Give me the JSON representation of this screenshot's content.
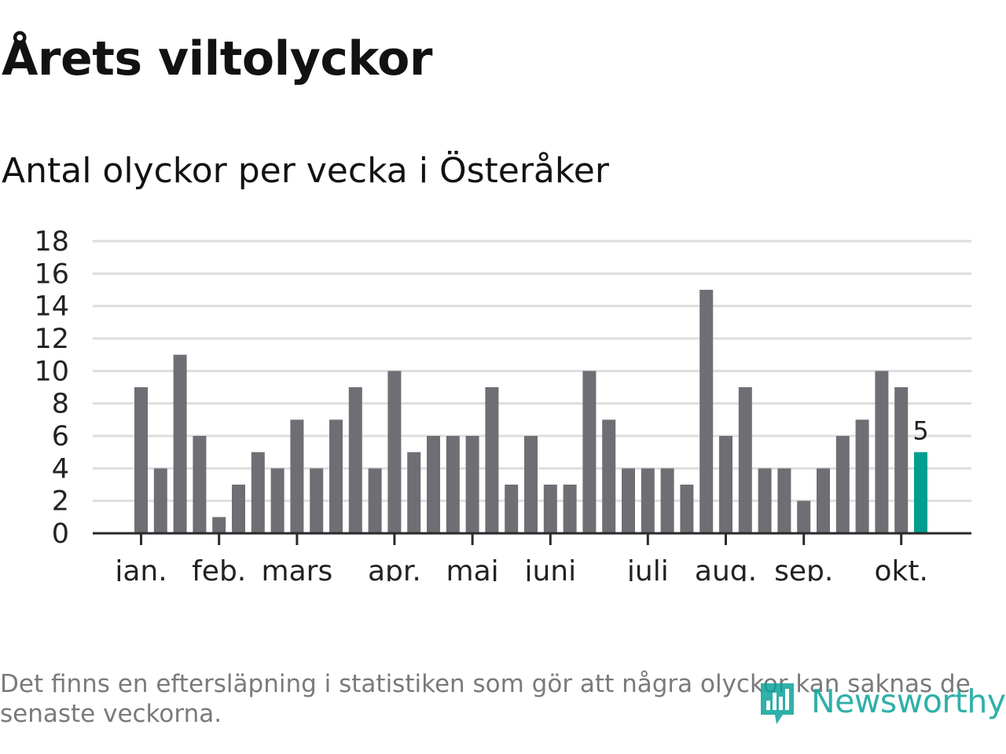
{
  "title": "Årets viltolyckor",
  "subtitle": "Antal olyckor per vecka i Österåker",
  "footnote": "Det finns en eftersläpning i statistiken som gör att några olyckor kan saknas de senaste veckorna.",
  "brand": {
    "name": "Newsworthy",
    "icon": "newsworthy-logo-icon",
    "color": "#0ba39a"
  },
  "colors": {
    "bar": "#6f6e74",
    "highlight": "#009e8f",
    "grid": "#dedede",
    "axis": "#2a2a2a"
  },
  "chart_data": {
    "type": "bar",
    "title": "Antal olyckor per vecka i Österåker",
    "xlabel": "",
    "ylabel": "",
    "ylim": [
      0,
      18
    ],
    "yticks": [
      0,
      2,
      4,
      6,
      8,
      10,
      12,
      14,
      16,
      18
    ],
    "grid": true,
    "values": [
      9,
      4,
      11,
      6,
      1,
      3,
      5,
      4,
      7,
      4,
      7,
      9,
      4,
      10,
      5,
      6,
      6,
      6,
      9,
      3,
      6,
      3,
      3,
      10,
      7,
      4,
      4,
      4,
      3,
      15,
      6,
      9,
      4,
      4,
      2,
      4,
      6,
      7,
      10,
      9,
      5
    ],
    "highlight_index": 40,
    "highlight_label": "5",
    "month_labels": [
      {
        "label": "jan.",
        "week_index": 0
      },
      {
        "label": "feb.",
        "week_index": 4
      },
      {
        "label": "mars",
        "week_index": 8
      },
      {
        "label": "apr.",
        "week_index": 13
      },
      {
        "label": "maj",
        "week_index": 17
      },
      {
        "label": "juni",
        "week_index": 21
      },
      {
        "label": "juli",
        "week_index": 26
      },
      {
        "label": "aug.",
        "week_index": 30
      },
      {
        "label": "sep.",
        "week_index": 34
      },
      {
        "label": "okt.",
        "week_index": 39
      }
    ]
  }
}
